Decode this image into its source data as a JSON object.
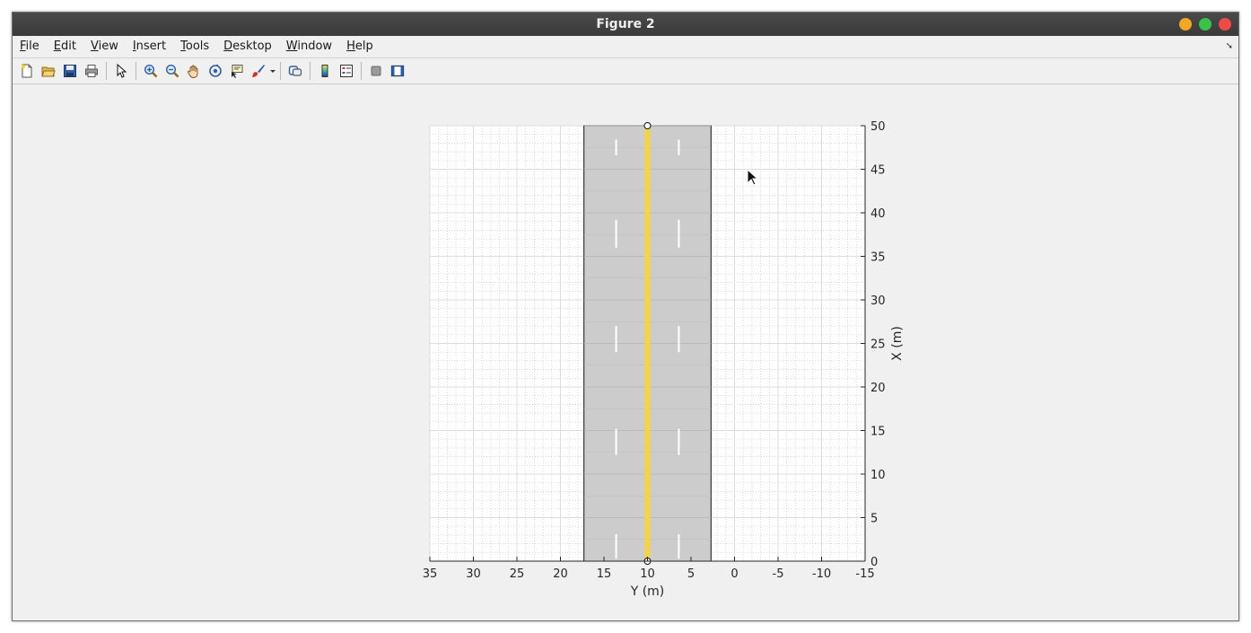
{
  "window": {
    "title": "Figure 2"
  },
  "menu": [
    {
      "id": "file",
      "pre": "",
      "ul": "F",
      "post": "ile"
    },
    {
      "id": "edit",
      "pre": "",
      "ul": "E",
      "post": "dit"
    },
    {
      "id": "view",
      "pre": "",
      "ul": "V",
      "post": "iew"
    },
    {
      "id": "insert",
      "pre": "",
      "ul": "I",
      "post": "nsert"
    },
    {
      "id": "tools",
      "pre": "",
      "ul": "T",
      "post": "ools"
    },
    {
      "id": "desktop",
      "pre": "",
      "ul": "D",
      "post": "esktop"
    },
    {
      "id": "window",
      "pre": "",
      "ul": "W",
      "post": "indow"
    },
    {
      "id": "help",
      "pre": "",
      "ul": "H",
      "post": "elp"
    }
  ],
  "toolbar_icons": [
    "new-figure-icon",
    "open-file-icon",
    "save-icon",
    "print-icon",
    "select-arrow-icon",
    "zoom-in-icon",
    "zoom-out-icon",
    "pan-hand-icon",
    "rotate-3d-icon",
    "data-cursor-icon",
    "brush-icon",
    "link-plot-icon",
    "colorbar-icon",
    "legend-icon",
    "hide-plot-tools-icon",
    "show-plot-tools-icon"
  ],
  "chart_data": {
    "type": "diagram",
    "xlabel": "Y (m)",
    "ylabel": "X (m)",
    "xlim": [
      35,
      -15
    ],
    "ylim": [
      0,
      50
    ],
    "x_ticks": [
      35,
      30,
      25,
      20,
      15,
      10,
      5,
      0,
      -5,
      -10,
      -15
    ],
    "y_ticks": [
      0,
      5,
      10,
      15,
      20,
      25,
      30,
      35,
      40,
      45,
      50
    ],
    "x_tick_labels": [
      "35",
      "30",
      "25",
      "20",
      "15",
      "10",
      "5",
      "0",
      "-5",
      "-10",
      "-15"
    ],
    "y_tick_labels": [
      "0",
      "5",
      "10",
      "15",
      "20",
      "25",
      "30",
      "35",
      "40",
      "45",
      "50"
    ],
    "y_axis_location": "right",
    "grid": true,
    "minor_grid": true,
    "road": {
      "y_left": 17.3,
      "y_right": 2.7,
      "x_start": 0,
      "x_end": 50,
      "surface_color": "#cccccc",
      "center_line": {
        "y": 10,
        "color": "#f5d442"
      },
      "dashed_lanes": [
        {
          "y": 13.6,
          "color": "#ffffff",
          "dashes": [
            [
              0.3,
              3.1
            ],
            [
              12.2,
              15.2
            ],
            [
              24.0,
              27.0
            ],
            [
              36.0,
              39.2
            ],
            [
              46.6,
              48.4
            ]
          ]
        },
        {
          "y": 6.4,
          "color": "#ffffff",
          "dashes": [
            [
              0.3,
              3.1
            ],
            [
              12.2,
              15.2
            ],
            [
              24.0,
              27.0
            ],
            [
              36.0,
              39.2
            ],
            [
              46.6,
              48.4
            ]
          ]
        }
      ],
      "end_markers": [
        {
          "x": 0,
          "y": 10
        },
        {
          "x": 50,
          "y": 10
        }
      ]
    }
  }
}
